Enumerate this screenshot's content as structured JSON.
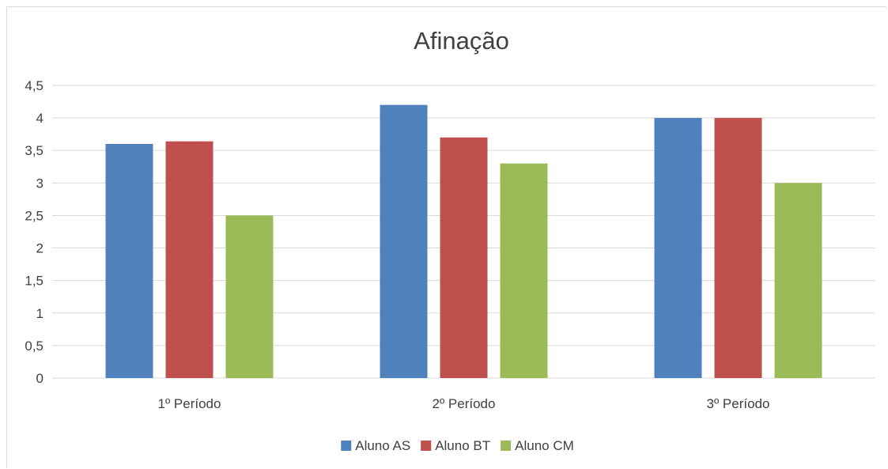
{
  "chart_data": {
    "type": "bar",
    "title": "Afinação",
    "xlabel": "",
    "ylabel": "",
    "categories": [
      "1º Período",
      "2º Período",
      "3º Período"
    ],
    "series": [
      {
        "name": "Aluno AS",
        "color": "#4f81bd",
        "values": [
          3.6,
          4.2,
          4.0
        ]
      },
      {
        "name": "Aluno BT",
        "color": "#c0504d",
        "values": [
          3.64,
          3.7,
          4.0
        ]
      },
      {
        "name": "Aluno CM",
        "color": "#9bbb59",
        "values": [
          2.5,
          3.3,
          3.0
        ]
      }
    ],
    "ylim": [
      0,
      4.5
    ],
    "ytick_labels": [
      "0",
      "0,5",
      "1",
      "1,5",
      "2",
      "2,5",
      "3",
      "3,5",
      "4",
      "4,5"
    ],
    "grid": true,
    "legend_position": "bottom"
  }
}
